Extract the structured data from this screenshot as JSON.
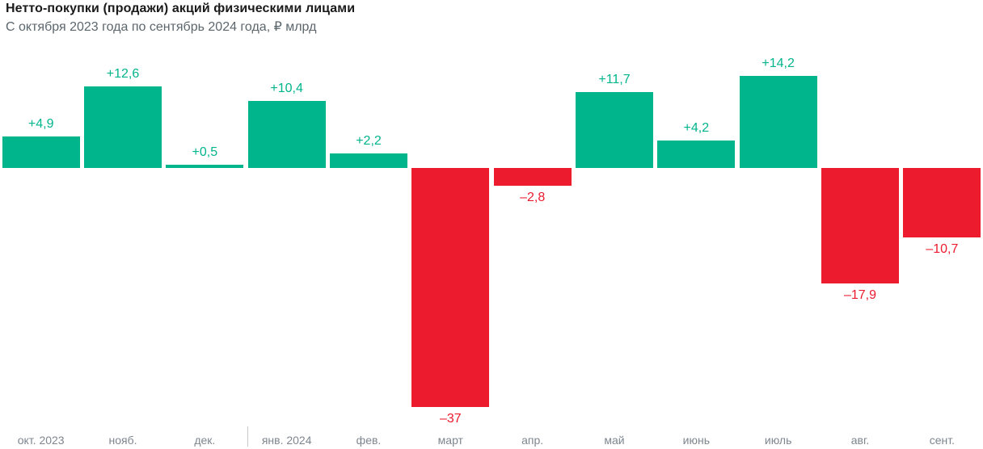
{
  "header": {
    "title": "Нетто-покупки (продажи) акций физическими лицами",
    "subtitle": "С октября 2023 года по сентябрь 2024 года, ₽ млрд"
  },
  "chart_data": {
    "type": "bar",
    "title": "Нетто-покупки (продажи) акций физическими лицами",
    "subtitle": "С октября 2023 года по сентябрь 2024 года, ₽ млрд",
    "unit": "₽ млрд",
    "categories": [
      "окт. 2023",
      "нояб.",
      "дек.",
      "янв. 2024",
      "фев.",
      "март",
      "апр.",
      "май",
      "июнь",
      "июль",
      "авг.",
      "сент."
    ],
    "values": [
      4.9,
      12.6,
      0.5,
      10.4,
      2.2,
      -37,
      -2.8,
      11.7,
      4.2,
      14.2,
      -17.9,
      -10.7
    ],
    "value_labels": [
      "+4,9",
      "+12,6",
      "+0,5",
      "+10,4",
      "+2,2",
      "–37",
      "–2,8",
      "+11,7",
      "+4,2",
      "+14,2",
      "–17,9",
      "–10,7"
    ],
    "ylim": [
      -40,
      16
    ],
    "xlabel": "",
    "ylabel": "",
    "grid": false,
    "legend": false,
    "baseline_value": 0,
    "year_separator_after_index": 2,
    "colors": {
      "positive": "#00b48c",
      "negative": "#ec1b2d",
      "axis_label": "#7e868f",
      "separator": "#c6c9cc",
      "title": "#1a1a1a",
      "subtitle": "#5c666d"
    }
  }
}
